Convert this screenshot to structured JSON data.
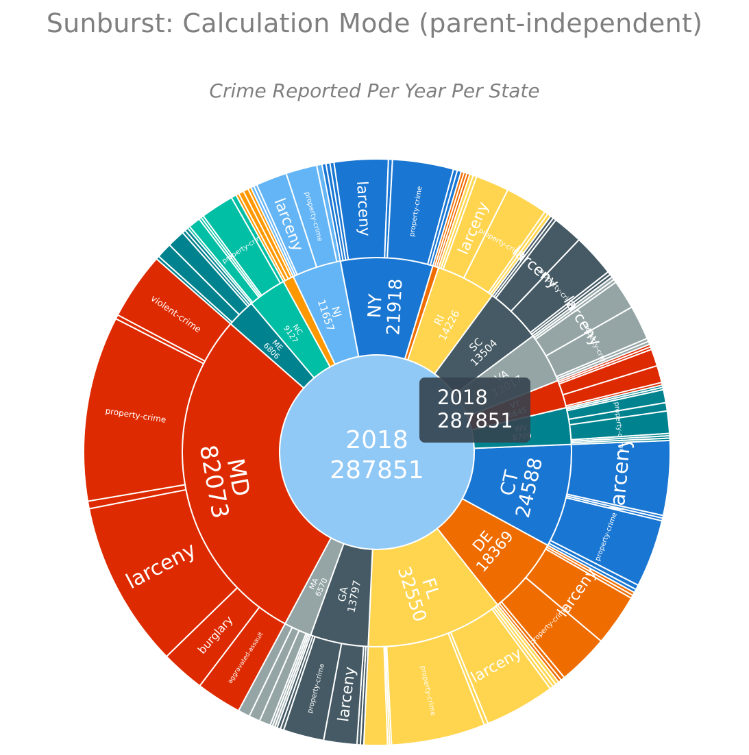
{
  "page": {
    "title": "Sunburst: Calculation Mode (parent-independent)"
  },
  "chart_data": {
    "type": "sunburst",
    "title": "Crime Reported Per Year Per State",
    "branchvalues": "remainder",
    "root": {
      "label": "2018",
      "value": 287851,
      "color": "#90c8f6"
    },
    "states": [
      {
        "label": "CT",
        "value": 24588,
        "color": "#1976d2",
        "crimes": [
          {
            "label": "larceny",
            "value": 11000
          },
          {
            "label": "",
            "value": 400
          },
          {
            "label": "",
            "value": 400
          },
          {
            "label": "property-crime",
            "value": 10000
          },
          {
            "label": "",
            "value": 700
          },
          {
            "label": "",
            "value": 500
          }
        ]
      },
      {
        "label": "DE",
        "value": 18369,
        "color": "#ef6c00",
        "crimes": [
          {
            "label": "",
            "value": 400
          },
          {
            "label": "",
            "value": 400
          },
          {
            "label": "larceny",
            "value": 6500
          },
          {
            "label": "property-crime",
            "value": 6400
          },
          {
            "label": "",
            "value": 500
          },
          {
            "label": "",
            "value": 400
          }
        ]
      },
      {
        "label": "FL",
        "value": 32550,
        "color": "#ffd54f",
        "crimes": [
          {
            "label": "",
            "value": 450
          },
          {
            "label": "",
            "value": 450
          },
          {
            "label": "",
            "value": 450
          },
          {
            "label": "larceny",
            "value": 9000
          },
          {
            "label": "",
            "value": 500
          },
          {
            "label": "property-crime",
            "value": 12000
          },
          {
            "label": "",
            "value": 250
          },
          {
            "label": "",
            "value": 250
          },
          {
            "label": "",
            "value": 3000
          }
        ]
      },
      {
        "label": "GA",
        "value": 13797,
        "color": "#455a64",
        "crimes": [
          {
            "label": "",
            "value": 450
          },
          {
            "label": "",
            "value": 450
          },
          {
            "label": "larceny",
            "value": 4400
          },
          {
            "label": "property-crime",
            "value": 5400
          },
          {
            "label": "",
            "value": 450
          },
          {
            "label": "",
            "value": 450
          }
        ]
      },
      {
        "label": "MA",
        "value": 6570,
        "color": "#95a5a6",
        "crimes": [
          {
            "label": "",
            "value": 350
          },
          {
            "label": "",
            "value": 350
          },
          {
            "label": "",
            "value": 350
          },
          {
            "label": "",
            "value": 1600
          },
          {
            "label": "",
            "value": 1600
          },
          {
            "label": "",
            "value": 1700
          }
        ]
      },
      {
        "label": "MD",
        "value": 82073,
        "color": "#de2a00",
        "crimes": [
          {
            "label": "aggravated-assault",
            "value": 5400
          },
          {
            "label": "burglary",
            "value": 5200
          },
          {
            "label": "larceny",
            "value": 19800
          },
          {
            "label": "",
            "value": 900
          },
          {
            "label": "property-crime",
            "value": 22000
          },
          {
            "label": "",
            "value": 500
          },
          {
            "label": "violent-crime",
            "value": 8000
          }
        ]
      },
      {
        "label": "ME",
        "value": 6806,
        "color": "#00838f",
        "crimes": [
          {
            "label": "",
            "value": 300
          },
          {
            "label": "",
            "value": 1400
          },
          {
            "label": "",
            "value": 1600
          },
          {
            "label": "",
            "value": 300
          },
          {
            "label": "",
            "value": 300
          }
        ]
      },
      {
        "label": "NC",
        "value": 9127,
        "color": "#00bfa5",
        "crimes": [
          {
            "label": "",
            "value": 300
          },
          {
            "label": "",
            "value": 1400
          },
          {
            "label": "",
            "value": 300
          },
          {
            "label": "",
            "value": 300
          },
          {
            "label": "property-crime",
            "value": 3900
          },
          {
            "label": "",
            "value": 600
          }
        ]
      },
      {
        "label": "",
        "value": 2600,
        "color": "#ff9800",
        "crimes": [
          {
            "label": "",
            "value": 300
          },
          {
            "label": "",
            "value": 500
          },
          {
            "label": "",
            "value": 500
          },
          {
            "label": "",
            "value": 300
          }
        ]
      },
      {
        "label": "NJ",
        "value": 11657,
        "color": "#64b5f6",
        "crimes": [
          {
            "label": "",
            "value": 300
          },
          {
            "label": "",
            "value": 300
          },
          {
            "label": "larceny",
            "value": 2900
          },
          {
            "label": "property-crime",
            "value": 2900
          },
          {
            "label": "",
            "value": 500
          }
        ]
      },
      {
        "label": "NY",
        "value": 21918,
        "color": "#1976d2",
        "crimes": [
          {
            "label": "",
            "value": 400
          },
          {
            "label": "",
            "value": 400
          },
          {
            "label": "",
            "value": 400
          },
          {
            "label": "larceny",
            "value": 5400
          },
          {
            "label": "",
            "value": 400
          },
          {
            "label": "property-crime",
            "value": 6100
          },
          {
            "label": "",
            "value": 400
          },
          {
            "label": "",
            "value": 400
          }
        ]
      },
      {
        "label": "",
        "value": 1400,
        "color": "#ef6c00",
        "crimes": [
          {
            "label": "",
            "value": 300
          },
          {
            "label": "",
            "value": 300
          },
          {
            "label": "",
            "value": 300
          }
        ]
      },
      {
        "label": "RI",
        "value": 14226,
        "color": "#ffd54f",
        "crimes": [
          {
            "label": "",
            "value": 350
          },
          {
            "label": "",
            "value": 350
          },
          {
            "label": "larceny",
            "value": 3300
          },
          {
            "label": "property-crime",
            "value": 4200
          },
          {
            "label": "",
            "value": 350
          },
          {
            "label": "",
            "value": 350
          }
        ]
      },
      {
        "label": "SC",
        "value": 13504,
        "color": "#455a64",
        "crimes": [
          {
            "label": "",
            "value": 300
          },
          {
            "label": "",
            "value": 300
          },
          {
            "label": "larceny",
            "value": 2800
          },
          {
            "label": "property-crime",
            "value": 4000
          },
          {
            "label": "",
            "value": 300
          },
          {
            "label": "",
            "value": 300
          }
        ]
      },
      {
        "label": "VA",
        "value": 12017,
        "color": "#95a5a6",
        "crimes": [
          {
            "label": "",
            "value": 300
          },
          {
            "label": "",
            "value": 300
          },
          {
            "label": "larceny",
            "value": 2800
          },
          {
            "label": "property-crime",
            "value": 3300
          },
          {
            "label": "",
            "value": 300
          },
          {
            "label": "",
            "value": 300
          }
        ]
      },
      {
        "label": "VT",
        "value": 6645,
        "color": "#de2a00",
        "crimes": [
          {
            "label": "",
            "value": 250
          },
          {
            "label": "",
            "value": 250
          },
          {
            "label": "",
            "value": 1600
          },
          {
            "label": "",
            "value": 1600
          },
          {
            "label": "",
            "value": 250
          }
        ]
      },
      {
        "label": "WV",
        "value": 8709,
        "color": "#00838f",
        "crimes": [
          {
            "label": "",
            "value": 250
          },
          {
            "label": "",
            "value": 250
          },
          {
            "label": "",
            "value": 1400
          },
          {
            "label": "",
            "value": 900
          },
          {
            "label": "property-crime",
            "value": 2400
          },
          {
            "label": "",
            "value": 250
          },
          {
            "label": "",
            "value": 250
          },
          {
            "label": "",
            "value": 250
          }
        ]
      }
    ],
    "hover": {
      "label": "2018",
      "value": 287851
    }
  }
}
